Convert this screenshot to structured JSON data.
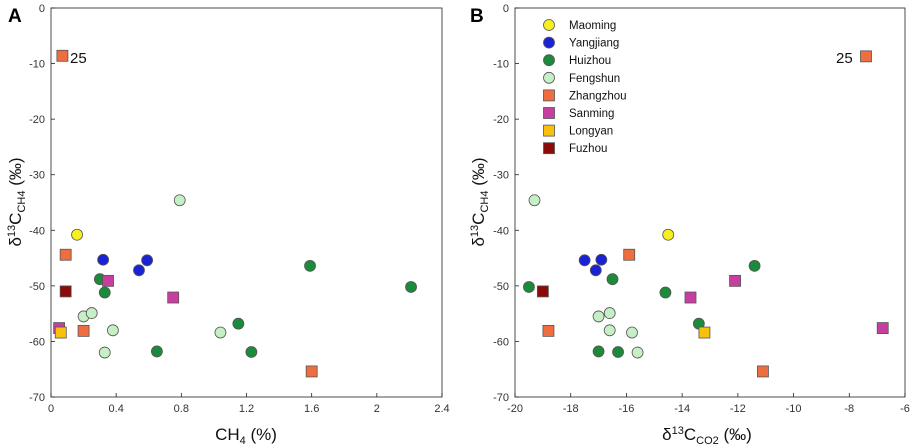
{
  "series_styles": {
    "Maoming": {
      "color": "#f5f01e",
      "shape": "circle"
    },
    "Yangjiang": {
      "color": "#1a22d6",
      "shape": "circle"
    },
    "Huizhou": {
      "color": "#1b8a3a",
      "shape": "circle"
    },
    "Fengshun": {
      "color": "#c6efc6",
      "shape": "circle"
    },
    "Zhangzhou": {
      "color": "#ef6e3f",
      "shape": "square"
    },
    "Sanming": {
      "color": "#c83ea0",
      "shape": "square"
    },
    "Longyan": {
      "color": "#f8c20c",
      "shape": "square"
    },
    "Fuzhou": {
      "color": "#8b0a0a",
      "shape": "square"
    }
  },
  "chart_data": [
    {
      "type": "scatter",
      "panel_label": "A",
      "xlabel": "CH4 (%)",
      "ylabel": "δ13CCH4 (‰)",
      "xlim": [
        0,
        2.4
      ],
      "ylim": [
        -70,
        0
      ],
      "x_ticks": [
        "0",
        "0.4",
        "0.8",
        "1.2",
        "1.6",
        "2",
        "2.4"
      ],
      "y_ticks": [
        "0",
        "-10",
        "-20",
        "-30",
        "-40",
        "-50",
        "-60",
        "-70"
      ],
      "annotation": {
        "text": "25",
        "x": 0.07,
        "y": -8.6
      },
      "series": [
        {
          "name": "Maoming",
          "points": [
            [
              0.16,
              -40.8
            ]
          ]
        },
        {
          "name": "Yangjiang",
          "points": [
            [
              0.32,
              -45.3
            ],
            [
              0.54,
              -47.2
            ],
            [
              0.59,
              -45.4
            ]
          ]
        },
        {
          "name": "Huizhou",
          "points": [
            [
              0.3,
              -48.8
            ],
            [
              0.33,
              -51.2
            ],
            [
              0.65,
              -61.8
            ],
            [
              1.15,
              -56.8
            ],
            [
              1.23,
              -61.9
            ],
            [
              1.59,
              -46.4
            ],
            [
              2.21,
              -50.2
            ]
          ]
        },
        {
          "name": "Fengshun",
          "points": [
            [
              0.2,
              -55.5
            ],
            [
              0.25,
              -54.9
            ],
            [
              0.33,
              -62.0
            ],
            [
              0.38,
              -58.0
            ],
            [
              0.79,
              -34.6
            ],
            [
              1.04,
              -58.4
            ]
          ]
        },
        {
          "name": "Zhangzhou",
          "points": [
            [
              0.07,
              -8.6
            ],
            [
              0.09,
              -44.4
            ],
            [
              0.2,
              -58.1
            ],
            [
              1.6,
              -65.4
            ]
          ]
        },
        {
          "name": "Sanming",
          "points": [
            [
              0.05,
              -57.6
            ],
            [
              0.35,
              -49.1
            ],
            [
              0.75,
              -52.1
            ]
          ]
        },
        {
          "name": "Longyan",
          "points": [
            [
              0.06,
              -58.4
            ]
          ]
        },
        {
          "name": "Fuzhou",
          "points": [
            [
              0.09,
              -51.0
            ]
          ]
        }
      ]
    },
    {
      "type": "scatter",
      "panel_label": "B",
      "xlabel": "δ13CCO2 (‰)",
      "ylabel": "δ13CCH4 (‰)",
      "xlim": [
        -20,
        -6
      ],
      "ylim": [
        -70,
        0
      ],
      "x_ticks": [
        "-20",
        "-18",
        "-16",
        "-14",
        "-12",
        "-10",
        "-8",
        "-6"
      ],
      "y_ticks": [
        "0",
        "-10",
        "-20",
        "-30",
        "-40",
        "-50",
        "-60",
        "-70"
      ],
      "annotation": {
        "text": "25",
        "x": -7.4,
        "y": -8.7
      },
      "legend": [
        "Maoming",
        "Yangjiang",
        "Huizhou",
        "Fengshun",
        "Zhangzhou",
        "Sanming",
        "Longyan",
        "Fuzhou"
      ],
      "series": [
        {
          "name": "Maoming",
          "points": [
            [
              -14.5,
              -40.8
            ]
          ]
        },
        {
          "name": "Yangjiang",
          "points": [
            [
              -17.5,
              -45.4
            ],
            [
              -17.1,
              -47.2
            ],
            [
              -16.9,
              -45.3
            ]
          ]
        },
        {
          "name": "Huizhou",
          "points": [
            [
              -19.5,
              -50.2
            ],
            [
              -17.0,
              -61.8
            ],
            [
              -16.5,
              -48.8
            ],
            [
              -16.3,
              -61.9
            ],
            [
              -14.6,
              -51.2
            ],
            [
              -13.4,
              -56.8
            ],
            [
              -11.4,
              -46.4
            ]
          ]
        },
        {
          "name": "Fengshun",
          "points": [
            [
              -19.3,
              -34.6
            ],
            [
              -17.0,
              -55.5
            ],
            [
              -16.6,
              -54.9
            ],
            [
              -16.6,
              -58.0
            ],
            [
              -15.8,
              -58.4
            ],
            [
              -15.6,
              -62.0
            ]
          ]
        },
        {
          "name": "Zhangzhou",
          "points": [
            [
              -7.4,
              -8.7
            ],
            [
              -15.9,
              -44.4
            ],
            [
              -18.8,
              -58.1
            ],
            [
              -11.1,
              -65.4
            ]
          ]
        },
        {
          "name": "Sanming",
          "points": [
            [
              -13.7,
              -52.1
            ],
            [
              -12.1,
              -49.1
            ],
            [
              -6.8,
              -57.6
            ]
          ]
        },
        {
          "name": "Longyan",
          "points": [
            [
              -13.2,
              -58.4
            ]
          ]
        },
        {
          "name": "Fuzhou",
          "points": [
            [
              -19.0,
              -51.0
            ]
          ]
        }
      ]
    }
  ]
}
